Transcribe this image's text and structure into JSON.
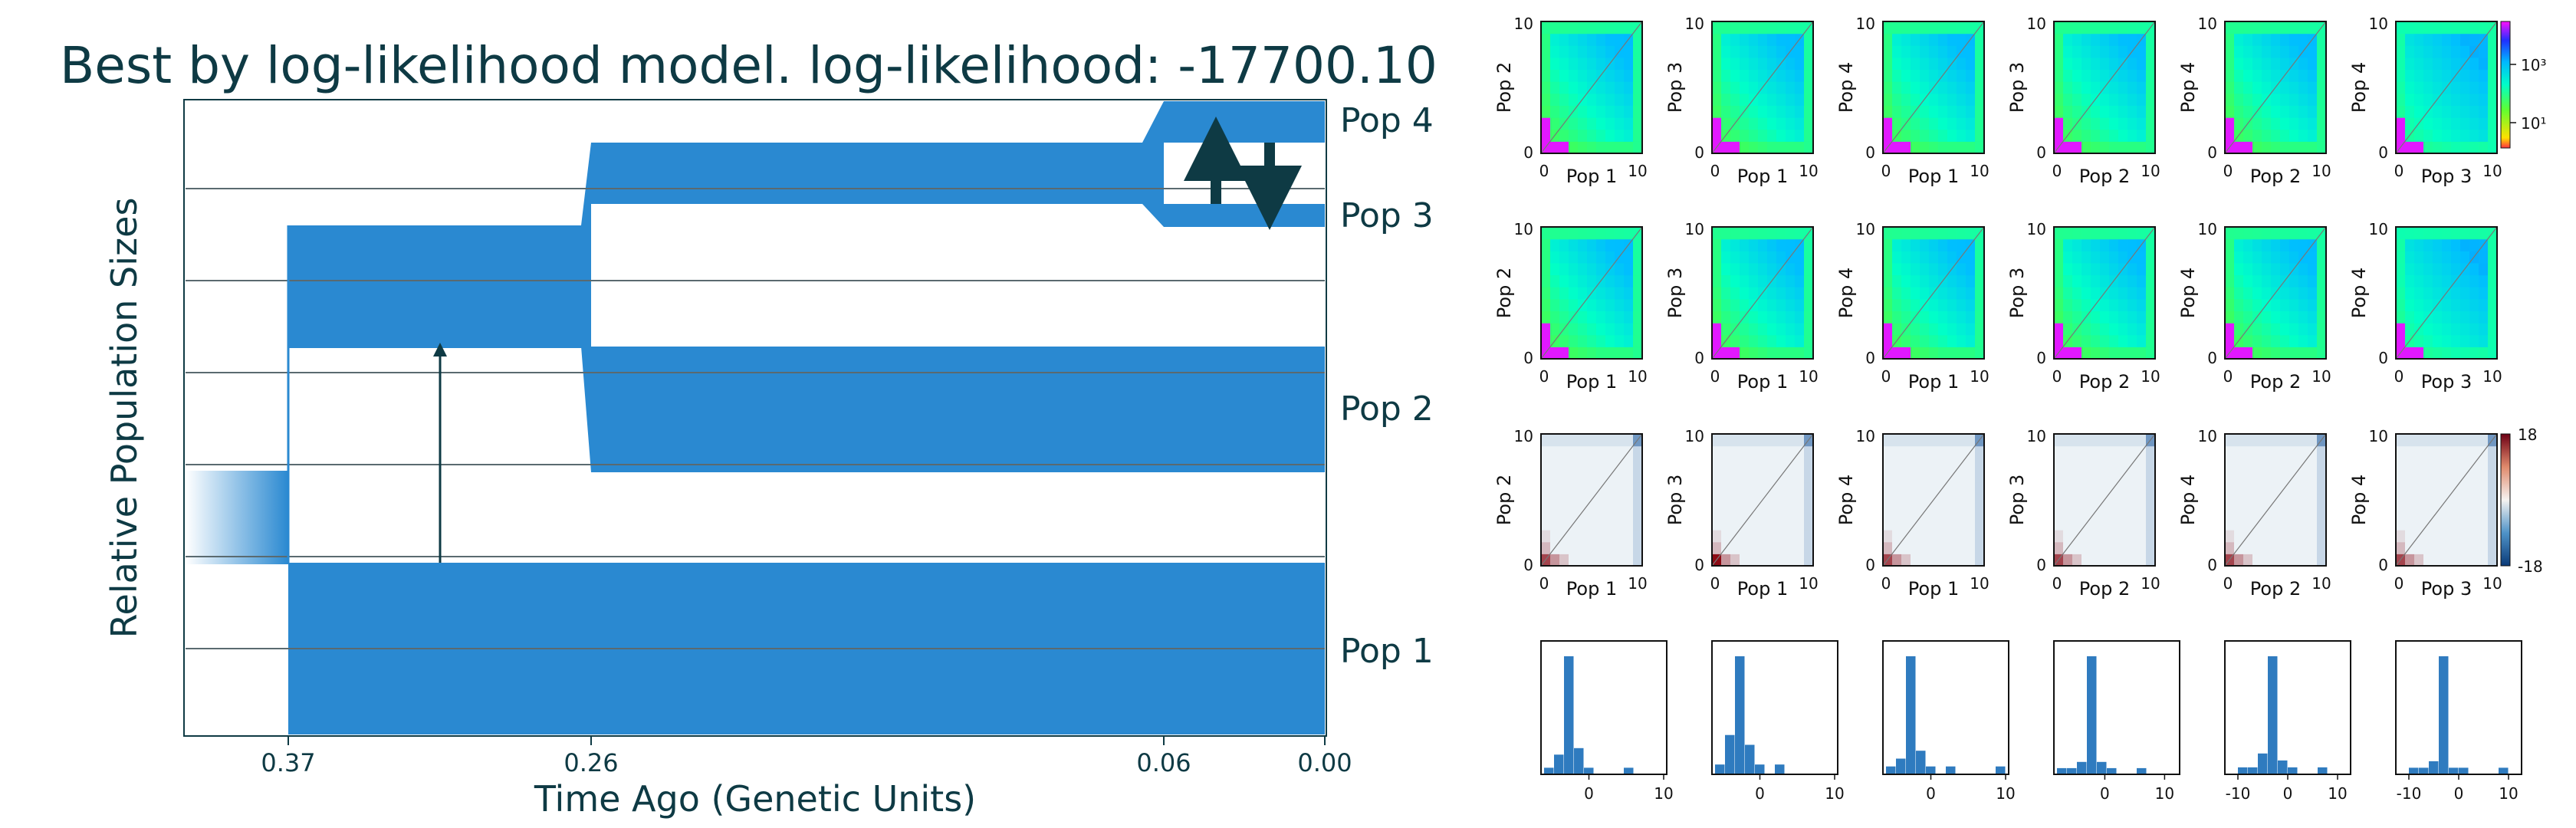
{
  "chart_data": [
    {
      "type": "demographic-model",
      "title": "Best by log-likelihood model. log-likelihood: -17700.10",
      "xlabel": "Time Ago (Genetic Units)",
      "ylabel": "Relative Population Sizes",
      "x_ticks": [
        "0.37",
        "0.26",
        "0.06",
        "0.00"
      ],
      "populations": [
        "Pop 1",
        "Pop 2",
        "Pop 3",
        "Pop 4"
      ],
      "grid": true,
      "color": "#2a89d1"
    },
    {
      "type": "heatmap",
      "name": "observed-sfs",
      "panels": [
        {
          "xlabel": "Pop 1",
          "ylabel": "Pop 2"
        },
        {
          "xlabel": "Pop 1",
          "ylabel": "Pop 3"
        },
        {
          "xlabel": "Pop 1",
          "ylabel": "Pop 4"
        },
        {
          "xlabel": "Pop 2",
          "ylabel": "Pop 3"
        },
        {
          "xlabel": "Pop 2",
          "ylabel": "Pop 4"
        },
        {
          "xlabel": "Pop 3",
          "ylabel": "Pop 4"
        }
      ],
      "x_ticks": [
        "0",
        "10"
      ],
      "y_ticks": [
        "0",
        "10"
      ],
      "colorbar_ticks": [
        "10³",
        "10¹"
      ],
      "colorscale": "hsv (magenta → blue → cyan → green → yellow)"
    },
    {
      "type": "heatmap",
      "name": "model-sfs",
      "panels": [
        {
          "xlabel": "Pop 1",
          "ylabel": "Pop 2"
        },
        {
          "xlabel": "Pop 1",
          "ylabel": "Pop 3"
        },
        {
          "xlabel": "Pop 1",
          "ylabel": "Pop 4"
        },
        {
          "xlabel": "Pop 2",
          "ylabel": "Pop 3"
        },
        {
          "xlabel": "Pop 2",
          "ylabel": "Pop 4"
        },
        {
          "xlabel": "Pop 3",
          "ylabel": "Pop 4"
        }
      ],
      "x_ticks": [
        "0",
        "10"
      ],
      "y_ticks": [
        "0",
        "10"
      ]
    },
    {
      "type": "heatmap",
      "name": "residuals",
      "panels": [
        {
          "xlabel": "Pop 1",
          "ylabel": "Pop 2"
        },
        {
          "xlabel": "Pop 1",
          "ylabel": "Pop 3"
        },
        {
          "xlabel": "Pop 1",
          "ylabel": "Pop 4"
        },
        {
          "xlabel": "Pop 2",
          "ylabel": "Pop 3"
        },
        {
          "xlabel": "Pop 2",
          "ylabel": "Pop 4"
        },
        {
          "xlabel": "Pop 3",
          "ylabel": "Pop 4"
        }
      ],
      "x_ticks": [
        "0",
        "10"
      ],
      "y_ticks": [
        "0",
        "10"
      ],
      "colorbar_ticks": [
        "18",
        "-18"
      ],
      "colorscale": "diverging blue-white-red"
    },
    {
      "type": "bar",
      "name": "residual-histograms",
      "panels": [
        {
          "x_ticks": [
            "0",
            "10"
          ],
          "xlim": [
            -6,
            10
          ],
          "values": [
            1,
            3,
            18,
            4,
            1,
            0,
            0,
            0,
            1,
            0,
            0,
            0
          ]
        },
        {
          "x_ticks": [
            "0",
            "10"
          ],
          "xlim": [
            -6,
            10
          ],
          "values": [
            1,
            4,
            12,
            3,
            1,
            0,
            1,
            0,
            0,
            0,
            0,
            0
          ]
        },
        {
          "x_ticks": [
            "0",
            "10"
          ],
          "xlim": [
            -6,
            10
          ],
          "values": [
            1,
            2,
            15,
            3,
            1,
            0,
            1,
            0,
            0,
            0,
            0,
            1
          ]
        },
        {
          "x_ticks": [
            "0",
            "10"
          ],
          "xlim": [
            -8,
            12
          ],
          "values": [
            1,
            1,
            2,
            19,
            2,
            1,
            0,
            0,
            1,
            0,
            0,
            0
          ]
        },
        {
          "x_ticks": [
            "-10",
            "0",
            "10"
          ],
          "xlim": [
            -12,
            12
          ],
          "values": [
            0,
            1,
            1,
            3,
            17,
            2,
            1,
            0,
            0,
            1,
            0,
            0
          ]
        },
        {
          "x_ticks": [
            "-10",
            "0",
            "10"
          ],
          "xlim": [
            -12,
            12
          ],
          "values": [
            0,
            1,
            1,
            2,
            18,
            1,
            1,
            0,
            0,
            0,
            1,
            0
          ]
        }
      ]
    }
  ]
}
